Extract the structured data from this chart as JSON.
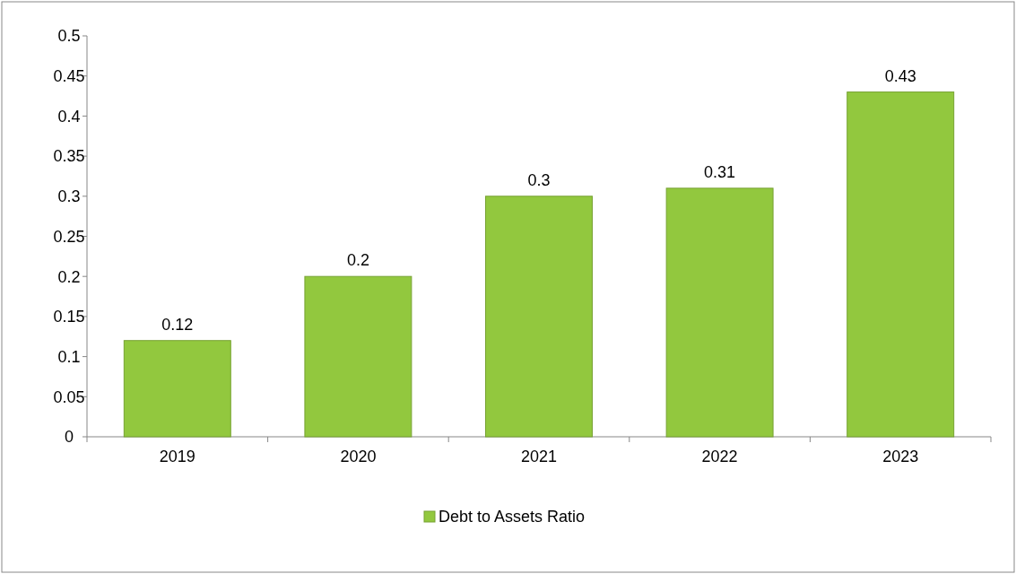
{
  "chart_data": {
    "type": "bar",
    "categories": [
      "2019",
      "2020",
      "2021",
      "2022",
      "2023"
    ],
    "series": [
      {
        "name": "Debt to Assets Ratio",
        "color": "#92c83e",
        "values": [
          0.12,
          0.2,
          0.3,
          0.31,
          0.43
        ]
      }
    ],
    "ylim": [
      0,
      0.5
    ],
    "yticks": [
      0,
      0.05,
      0.1,
      0.15,
      0.2,
      0.25,
      0.3,
      0.35,
      0.4,
      0.45,
      0.5
    ],
    "data_labels": true,
    "legend": "bottom",
    "grid": false
  }
}
